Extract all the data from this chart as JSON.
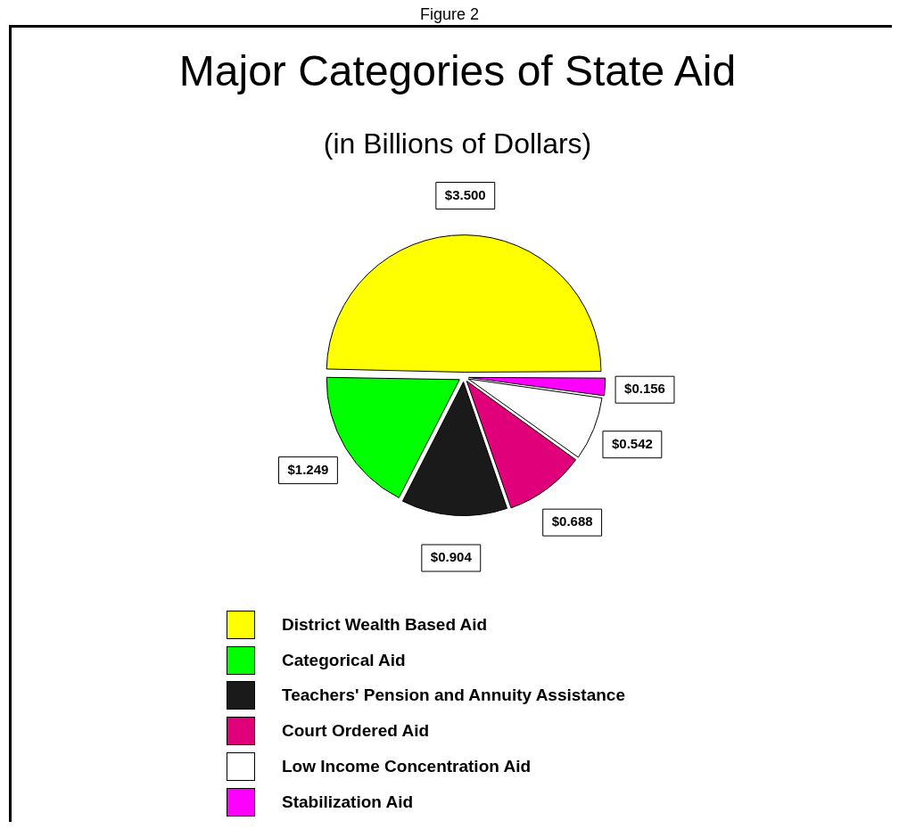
{
  "chart_data": {
    "type": "pie",
    "title": "Major Categories of State Aid",
    "subtitle": "(in Billions of Dollars)",
    "annotations": [
      "Figure 2"
    ],
    "categories": [
      "District Wealth Based Aid",
      "Categorical Aid",
      "Teachers' Pension and Annuity Assistance",
      "Court Ordered Aid",
      "Low Income Concentration Aid",
      "Stabilization Aid"
    ],
    "values": [
      3.5,
      1.249,
      0.904,
      0.688,
      0.542,
      0.156
    ],
    "value_labels": [
      "$3.500",
      "$1.249",
      "$0.904",
      "$0.688",
      "$0.542",
      "$0.156"
    ],
    "colors": [
      "#ffff00",
      "#00ff00",
      "#1a1a1a",
      "#e0007a",
      "#ffffff",
      "#ff00ff"
    ],
    "legend": "bottom"
  }
}
